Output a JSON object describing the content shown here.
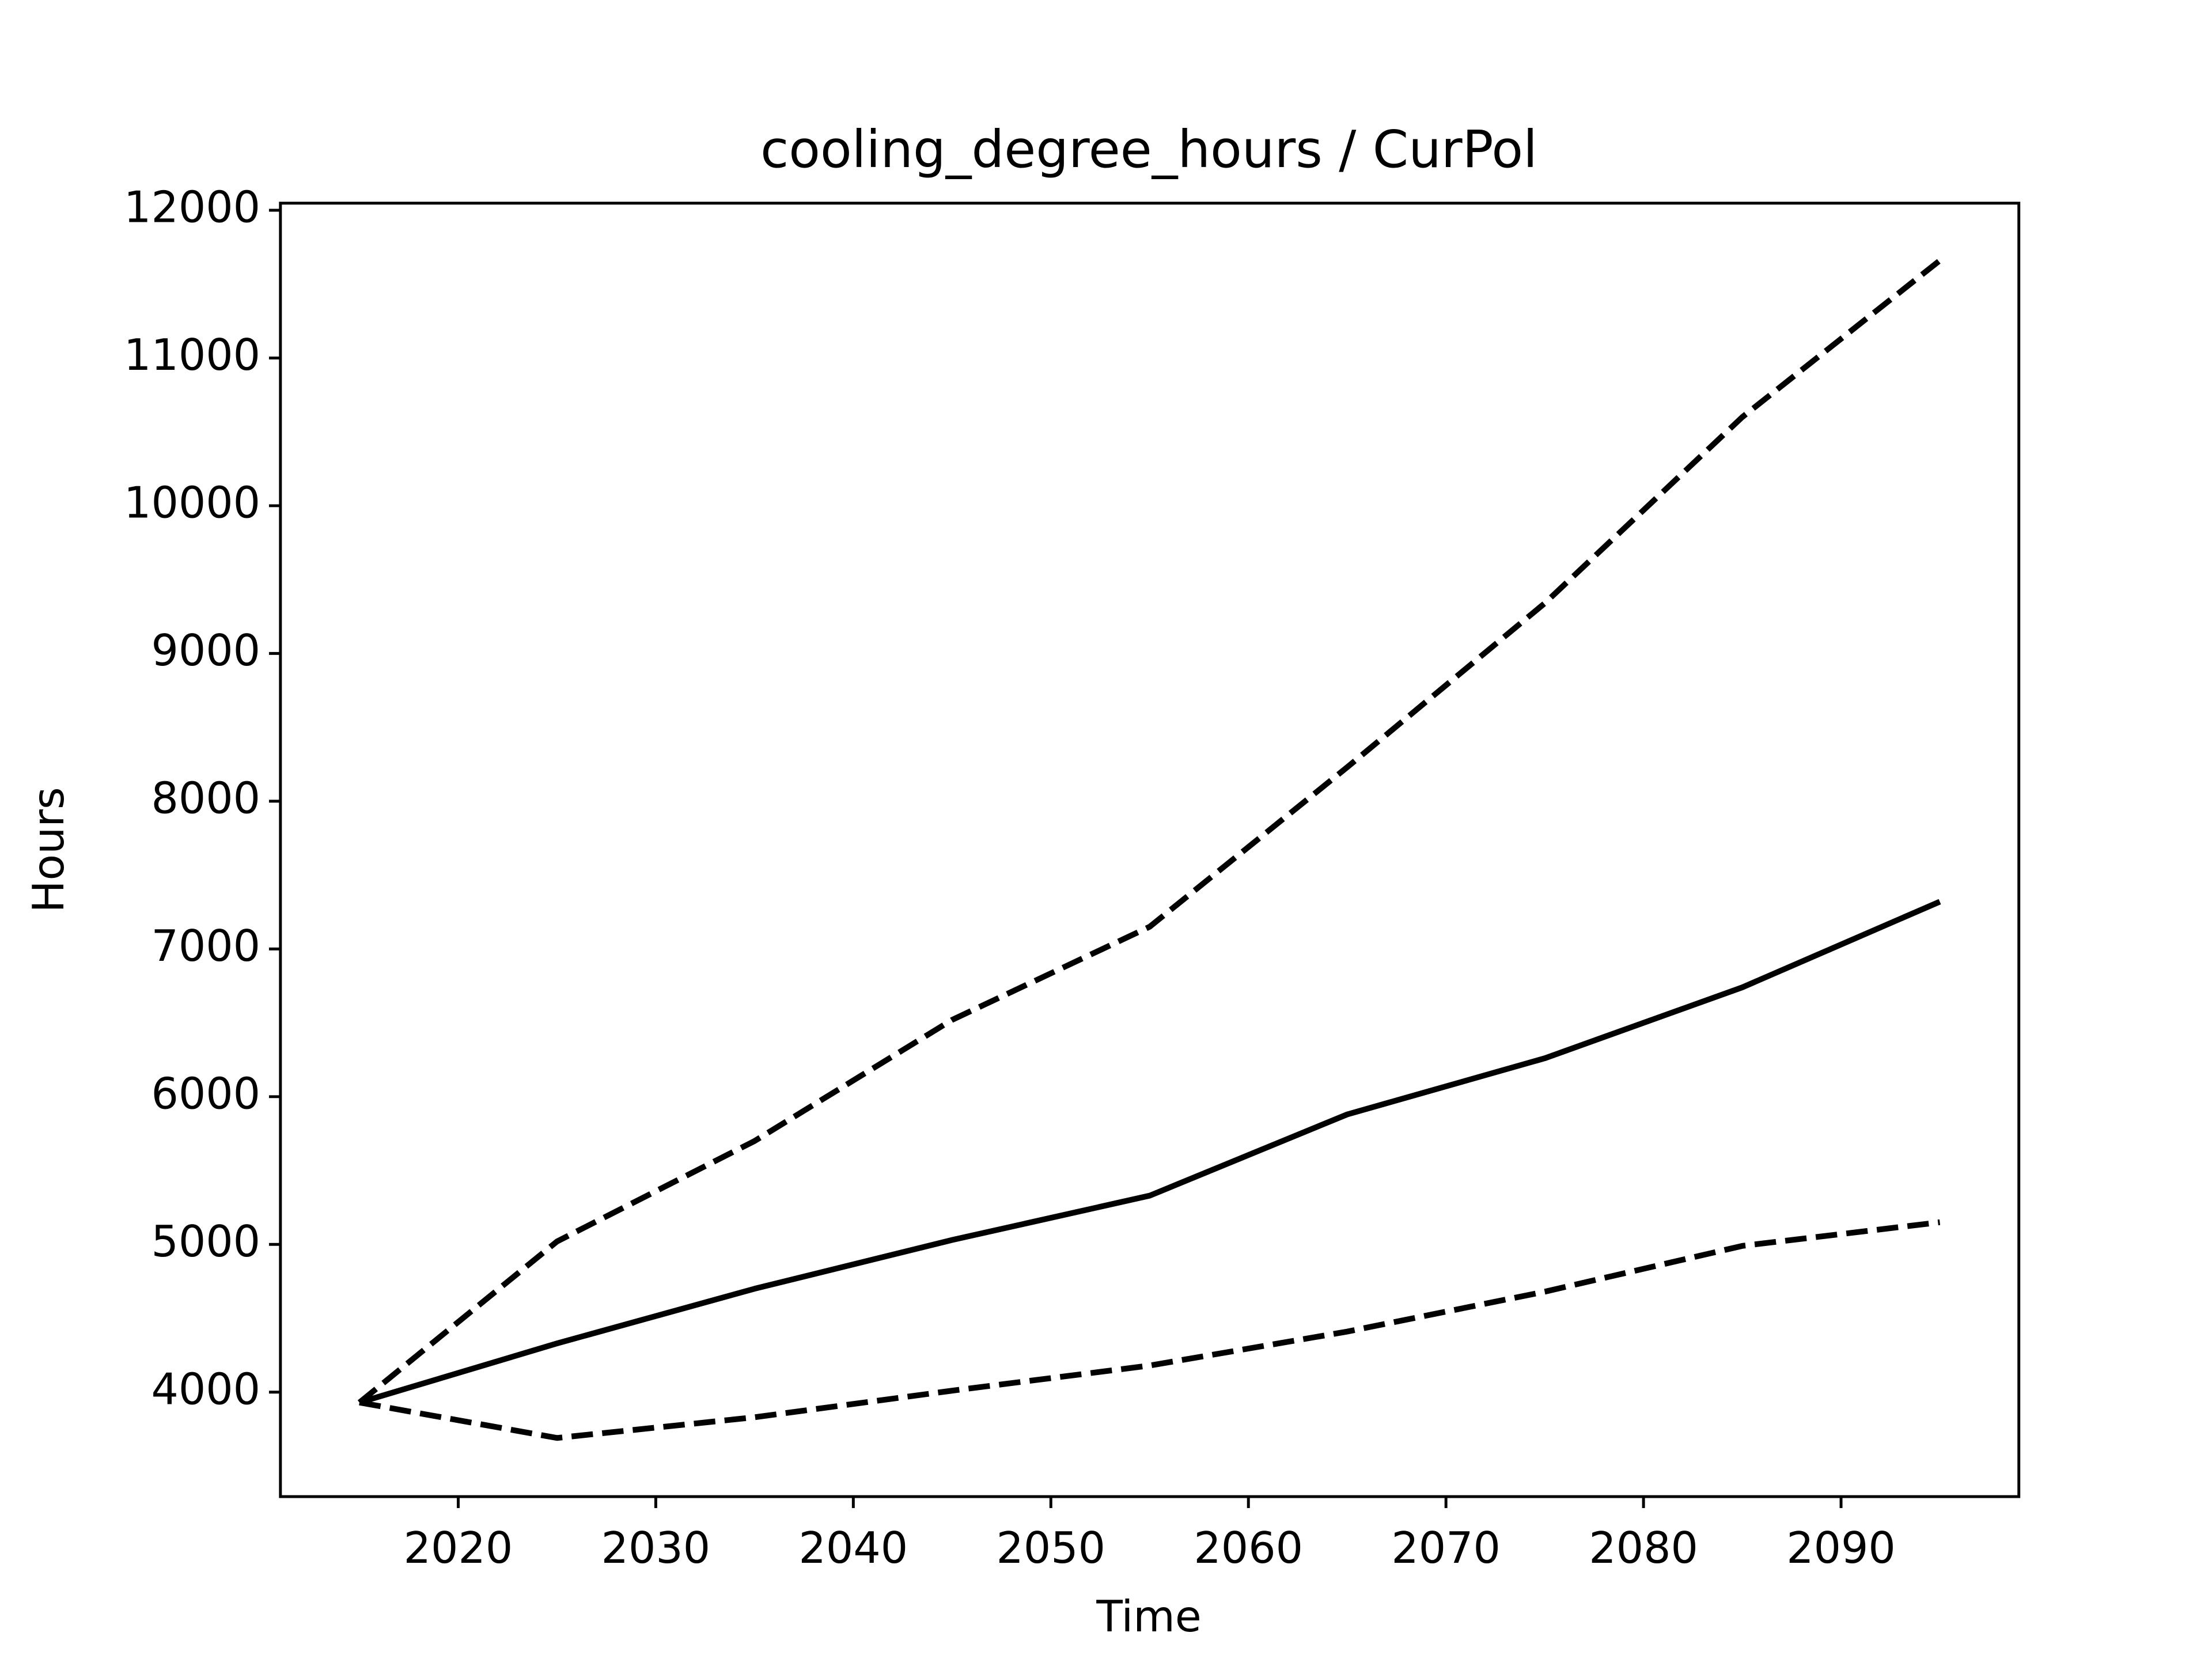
{
  "chart_data": {
    "type": "line",
    "title": "cooling_degree_hours / CurPol",
    "x_label": "Time",
    "y_label": "Hours",
    "x": [
      2015,
      2025,
      2035,
      2045,
      2055,
      2065,
      2075,
      2085,
      2095
    ],
    "series": [
      {
        "color": "#000000",
        "dashed": false,
        "values": [
          3930,
          4330,
          4700,
          5030,
          5330,
          5880,
          6260,
          6740,
          7320
        ]
      },
      {
        "color": "#000000",
        "dashed": true,
        "values": [
          3930,
          5020,
          5700,
          6520,
          7150,
          8230,
          9340,
          10600,
          11660
        ]
      },
      {
        "color": "#000000",
        "dashed": true,
        "values": [
          3930,
          3690,
          3830,
          4010,
          4180,
          4410,
          4680,
          4990,
          5150
        ]
      }
    ],
    "xlim": [
      2011,
      2099
    ],
    "xticks": [
      2020,
      2030,
      2040,
      2050,
      2060,
      2070,
      2080,
      2090
    ],
    "ylim": [
      3293,
      12048
    ],
    "yticks": [
      4000,
      5000,
      6000,
      7000,
      8000,
      9000,
      10000,
      11000,
      12000
    ],
    "grid": false
  }
}
